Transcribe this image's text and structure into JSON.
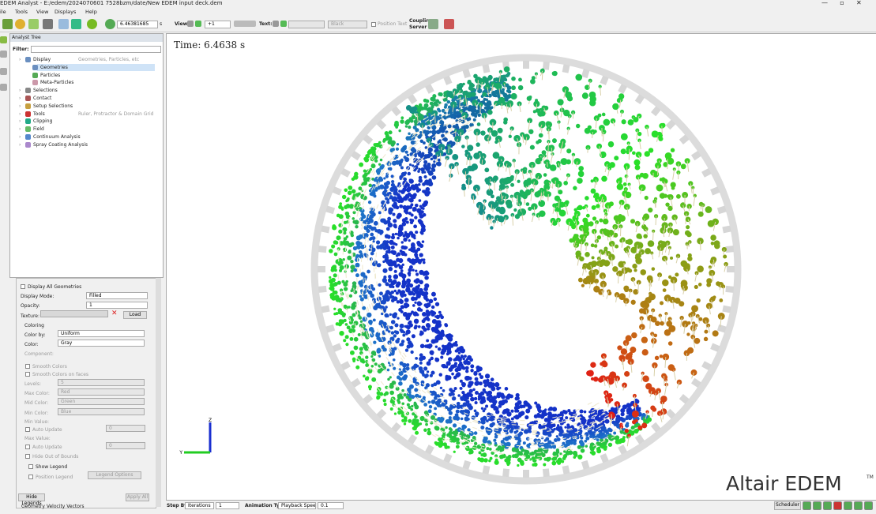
{
  "window": {
    "title": "EDEM Analyst - E:/edem/2024070601 7528bzm/date/New EDEM input deck.dem"
  },
  "menu": [
    "ile",
    "Tools",
    "View",
    "Displays",
    "Help"
  ],
  "toolbar": {
    "time": "6.46381685",
    "time_unit": "s",
    "view": "View:",
    "zoom": "+1",
    "text": "Text:",
    "text_color": "Black",
    "position_text": "Position Text",
    "coupling": [
      "Coupling",
      "Server"
    ]
  },
  "tree": {
    "title": "Analyst Tree",
    "filter": "Filter:",
    "items": [
      {
        "label": "Display",
        "hint": "Geometries, Particles, etc",
        "children": [
          {
            "label": "Geometries"
          },
          {
            "label": "Particles"
          },
          {
            "label": "Meta-Particles"
          }
        ]
      },
      {
        "label": "Selections"
      },
      {
        "label": "Contact"
      },
      {
        "label": "Setup Selections"
      },
      {
        "label": "Tools",
        "hint": "Ruler, Protractor & Domain Grid"
      },
      {
        "label": "Clipping"
      },
      {
        "label": "Field"
      },
      {
        "label": "Continuum Analysis"
      },
      {
        "label": "Spray Coating Analysis"
      }
    ]
  },
  "properties": {
    "display_all": "Display All Geometries",
    "display_mode": "Display Mode:",
    "display_mode_value": "Filled",
    "opacity": "Opacity:",
    "opacity_value": "1",
    "texture": "Texture:",
    "load": "Load",
    "coloring": "Coloring",
    "color_by": "Color by:",
    "color_by_value": "Uniform",
    "color": "Color:",
    "color_value": "Gray",
    "component": "Component:",
    "smooth_colors": "Smooth Colors",
    "smooth_faces": "Smooth Colors on faces",
    "levels": "Levels:",
    "levels_value": "5",
    "max_color": "Max Color:",
    "max_color_value": "Red",
    "mid_color": "Mid Color:",
    "mid_color_value": "Green",
    "min_color": "Min Color:",
    "min_color_value": "Blue",
    "min_value": "Min Value:",
    "min_auto": "Auto Update",
    "min_value_value": "0",
    "max_value": "Max Value:",
    "max_auto": "Auto Update",
    "max_value_value": "0",
    "hide_oob": "Hide Out of Bounds",
    "show_legend": "Show Legend",
    "position_legend": "Position Legend",
    "legend_options": "Legend Options",
    "hide_legends": "Hide Legends",
    "apply_all": "Apply All",
    "vectors": "Geometry Velocity Vectors"
  },
  "viewport": {
    "time": "Time: 6.4638 s",
    "axis": [
      "Z",
      "Y"
    ],
    "logo": "Altair EDEM",
    "tm": "TM"
  },
  "statusbar": {
    "step_by": "Step By:",
    "step_type": "Iterations",
    "step": "1",
    "animation": "Animation Type:",
    "anim_type": "Playback Speed",
    "speed": "0.1",
    "scheduler": "Scheduler"
  }
}
